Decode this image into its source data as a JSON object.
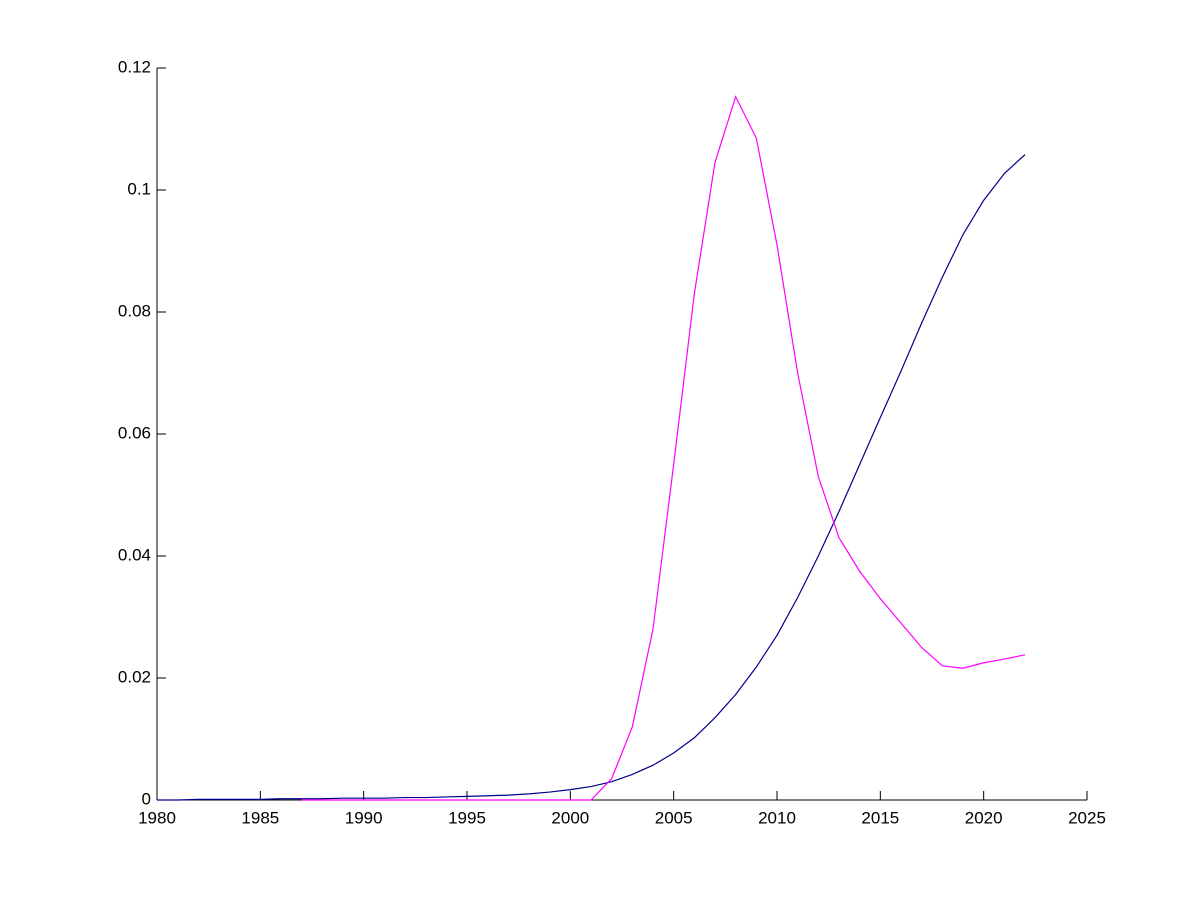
{
  "chart_data": {
    "type": "line",
    "x": [
      1980,
      1981,
      1982,
      1983,
      1984,
      1985,
      1986,
      1987,
      1988,
      1989,
      1990,
      1991,
      1992,
      1993,
      1994,
      1995,
      1996,
      1997,
      1998,
      1999,
      2000,
      2001,
      2002,
      2003,
      2004,
      2005,
      2006,
      2007,
      2008,
      2009,
      2010,
      2011,
      2012,
      2013,
      2014,
      2015,
      2016,
      2017,
      2018,
      2019,
      2020,
      2021,
      2022
    ],
    "series": [
      {
        "color": "#00008b",
        "values": [
          0.0,
          0.0,
          0.0001,
          0.0001,
          0.0001,
          0.0001,
          0.0002,
          0.0002,
          0.0002,
          0.0003,
          0.0003,
          0.0003,
          0.0004,
          0.0004,
          0.0005,
          0.0006,
          0.0007,
          0.0008,
          0.001,
          0.0013,
          0.0017,
          0.0022,
          0.003,
          0.0042,
          0.0057,
          0.0077,
          0.0102,
          0.0135,
          0.0173,
          0.0218,
          0.027,
          0.0332,
          0.04,
          0.0473,
          0.055,
          0.0627,
          0.0703,
          0.0782,
          0.0857,
          0.0927,
          0.0983,
          0.1027,
          0.1058
        ]
      },
      {
        "color": "#ff00ff",
        "values": [
          null,
          null,
          null,
          null,
          null,
          null,
          null,
          0,
          0,
          0,
          0,
          0,
          0,
          0,
          0,
          0,
          0,
          0,
          0,
          0,
          0,
          0,
          0.0035,
          0.012,
          0.028,
          0.055,
          0.083,
          0.1045,
          0.1153,
          0.1085,
          0.091,
          0.07,
          0.053,
          0.043,
          0.0375,
          0.033,
          0.029,
          0.025,
          0.022,
          0.0216,
          0.0225,
          0.0231,
          0.0238
        ]
      }
    ],
    "xlim": [
      1980,
      2025
    ],
    "xticks": [
      1980,
      1985,
      1990,
      1995,
      2000,
      2005,
      2010,
      2015,
      2020,
      2025
    ],
    "ylim": [
      0,
      0.12
    ],
    "yticks": [
      0,
      0.02,
      0.04,
      0.06,
      0.08,
      0.1,
      0.12
    ]
  }
}
